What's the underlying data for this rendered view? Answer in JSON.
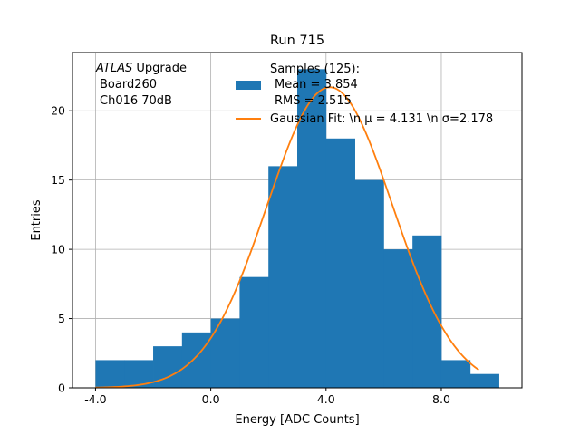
{
  "chart_data": {
    "type": "bar",
    "title": "Run 715",
    "xlabel": "Energy [ADC Counts]",
    "ylabel": "Entries",
    "xlim": [
      -4.8,
      10.8
    ],
    "ylim": [
      0,
      24.2
    ],
    "grid": true,
    "x_ticks": [
      -4,
      0,
      4,
      8
    ],
    "x_tick_labels": [
      "-4.0",
      "0.0",
      "4.0",
      "8.0"
    ],
    "y_ticks": [
      0,
      5,
      10,
      15,
      20
    ],
    "y_tick_labels": [
      "0",
      "5",
      "10",
      "15",
      "20"
    ],
    "bins": [
      {
        "x0": -4,
        "x1": -3,
        "count": 2
      },
      {
        "x0": -3,
        "x1": -2,
        "count": 2
      },
      {
        "x0": -2,
        "x1": -1,
        "count": 3
      },
      {
        "x0": -1,
        "x1": 0,
        "count": 4
      },
      {
        "x0": 0,
        "x1": 1,
        "count": 5
      },
      {
        "x0": 1,
        "x1": 2,
        "count": 8
      },
      {
        "x0": 2,
        "x1": 3,
        "count": 16
      },
      {
        "x0": 3,
        "x1": 4,
        "count": 23
      },
      {
        "x0": 4,
        "x1": 5,
        "count": 18
      },
      {
        "x0": 5,
        "x1": 6,
        "count": 15
      },
      {
        "x0": 6,
        "x1": 7,
        "count": 10
      },
      {
        "x0": 7,
        "x1": 8,
        "count": 11
      },
      {
        "x0": 8,
        "x1": 9,
        "count": 2
      },
      {
        "x0": 9,
        "x1": 10,
        "count": 1
      }
    ],
    "gaussian_fit": {
      "mu": 4.131,
      "sigma": 2.178,
      "amplitude": 21.7,
      "x_range": [
        -4,
        9.3
      ]
    },
    "series_colors": {
      "histogram": "#1f77b4",
      "fit": "#ff7f0e"
    },
    "annotation": {
      "atlas": "ATLAS",
      "upgrade": " Upgrade",
      "board": "Board260",
      "channel": "Ch016 70dB"
    },
    "legend": {
      "position": "top-center",
      "samples_line1": "Samples (125):",
      "samples_line2": "Mean = 3.854",
      "samples_line3": "RMS = 2.515",
      "fit_label": "Gaussian Fit: \\n μ = 4.131 \\n σ=2.178"
    }
  }
}
